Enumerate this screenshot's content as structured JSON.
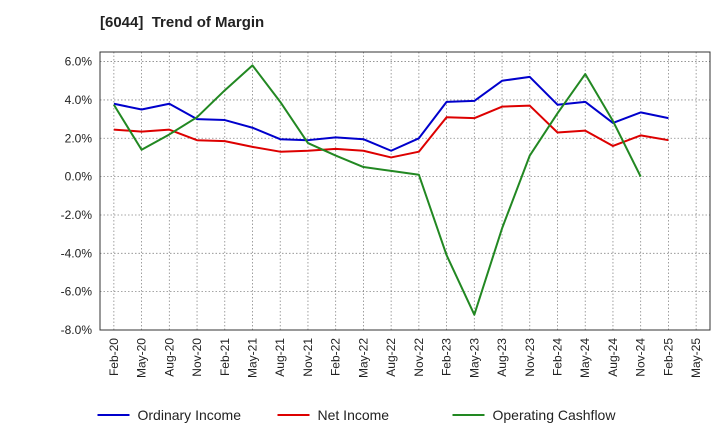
{
  "chart_data": {
    "type": "line",
    "title": "[6044]  Trend of Margin",
    "categories": [
      "Feb-20",
      "May-20",
      "Aug-20",
      "Nov-20",
      "Feb-21",
      "May-21",
      "Aug-21",
      "Nov-21",
      "Feb-22",
      "May-22",
      "Aug-22",
      "Nov-22",
      "Feb-23",
      "May-23",
      "Aug-23",
      "Nov-23",
      "Feb-24",
      "May-24",
      "Aug-24",
      "Nov-24",
      "Feb-25",
      "May-25"
    ],
    "y_ticks": [
      "6.0%",
      "4.0%",
      "2.0%",
      "0.0%",
      "-2.0%",
      "-4.0%",
      "-6.0%",
      "-8.0%"
    ],
    "ylim": [
      -8,
      6.5
    ],
    "grid": true,
    "legend_position": "bottom",
    "series": [
      {
        "name": "Ordinary Income",
        "color": "#0000cc",
        "values": [
          3.8,
          3.5,
          3.8,
          3.0,
          2.95,
          2.55,
          1.95,
          1.9,
          2.05,
          1.95,
          1.35,
          2.0,
          3.9,
          3.95,
          5.0,
          5.2,
          3.75,
          3.9,
          2.8,
          3.35,
          3.05,
          null
        ]
      },
      {
        "name": "Net Income",
        "color": "#dd0000",
        "values": [
          2.45,
          2.35,
          2.45,
          1.9,
          1.85,
          1.55,
          1.3,
          1.35,
          1.45,
          1.35,
          1.0,
          1.3,
          3.1,
          3.05,
          3.65,
          3.7,
          2.3,
          2.4,
          1.6,
          2.15,
          1.9,
          null
        ]
      },
      {
        "name": "Operating Cashflow",
        "color": "#228822",
        "values": [
          3.75,
          1.4,
          2.2,
          3.1,
          4.5,
          5.8,
          3.9,
          1.75,
          1.1,
          0.5,
          0.3,
          0.1,
          -4.1,
          -7.2,
          -2.7,
          1.1,
          3.3,
          5.35,
          2.9,
          0.0,
          null,
          null
        ]
      }
    ]
  }
}
